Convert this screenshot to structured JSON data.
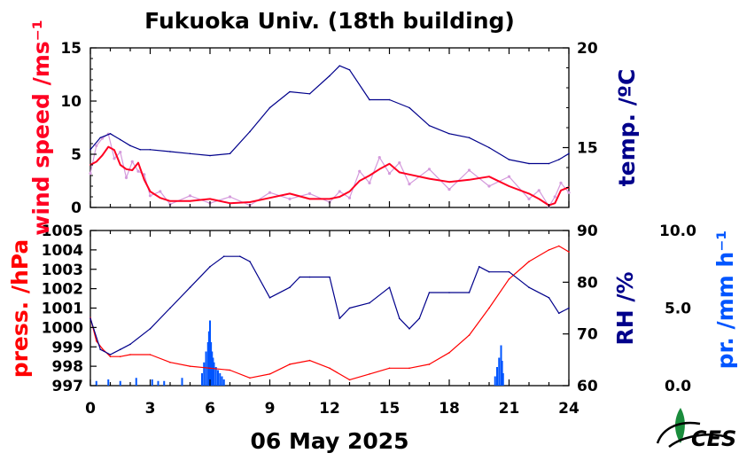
{
  "colors": {
    "wind_mean": "#ff0022",
    "wind_raw": "#d49adc",
    "temperature": "#00008b",
    "pressure": "#ff0000",
    "humidity": "#00008b",
    "precipitation": "#0055ff",
    "logo": "#1a8c3c"
  },
  "title": "Fukuoka Univ. (18th building)",
  "date": "06 May 2025",
  "logo_text": "CES",
  "chart_data": [
    {
      "type": "line",
      "panel": "top",
      "x_unit": "hour of day",
      "xlim": [
        0,
        24
      ],
      "left_axis": {
        "label": "wind speed /ms⁻¹",
        "ylim": [
          0,
          15
        ],
        "ticks": [
          "0",
          "5",
          "10",
          "15"
        ]
      },
      "right_axis": {
        "label": "temp. /ºC",
        "ylim": [
          12,
          20
        ],
        "ticks": [
          "15",
          "20"
        ]
      },
      "series": [
        {
          "key": "wind_mean",
          "axis": "left",
          "x": [
            0,
            0.3,
            0.6,
            0.9,
            1.2,
            1.5,
            1.8,
            2.1,
            2.4,
            2.7,
            3.0,
            3.5,
            4.0,
            5.0,
            6.0,
            7.0,
            8.0,
            9.0,
            10.0,
            11.0,
            12.0,
            12.5,
            13.0,
            13.5,
            14.0,
            14.5,
            15.0,
            15.5,
            16.0,
            17.0,
            18.0,
            19.0,
            20.0,
            21.0,
            22.0,
            22.5,
            23.0,
            23.3,
            23.6,
            24.0
          ],
          "values": [
            4.0,
            4.3,
            4.9,
            5.7,
            5.4,
            4.0,
            3.6,
            3.5,
            4.2,
            2.6,
            1.5,
            0.9,
            0.6,
            0.6,
            0.8,
            0.4,
            0.5,
            0.9,
            1.3,
            0.8,
            0.8,
            1.0,
            1.5,
            2.5,
            3.0,
            3.6,
            4.1,
            3.3,
            3.1,
            2.7,
            2.4,
            2.6,
            2.9,
            2.0,
            1.3,
            0.8,
            0.2,
            0.4,
            1.6,
            1.9
          ]
        },
        {
          "key": "wind_raw",
          "axis": "left",
          "x": [
            0,
            0.3,
            0.6,
            0.9,
            1.2,
            1.5,
            1.8,
            2.1,
            2.4,
            2.7,
            3.0,
            3.5,
            4.0,
            5.0,
            6.0,
            7.0,
            8.0,
            9.0,
            10.0,
            11.0,
            12.0,
            12.5,
            13.0,
            13.5,
            14.0,
            14.5,
            15.0,
            15.5,
            16.0,
            17.0,
            18.0,
            19.0,
            20.0,
            21.0,
            22.0,
            22.5,
            23.0,
            23.3,
            23.6,
            24.0
          ],
          "values": [
            3.2,
            5.8,
            6.5,
            6.9,
            4.6,
            5.2,
            2.8,
            4.3,
            3.4,
            3.1,
            1.1,
            1.5,
            0.3,
            1.1,
            0.4,
            1.0,
            0.2,
            1.4,
            0.8,
            1.3,
            0.5,
            1.5,
            0.9,
            3.4,
            2.3,
            4.7,
            3.2,
            4.2,
            2.2,
            3.6,
            1.7,
            3.5,
            2.0,
            2.9,
            0.8,
            1.6,
            0.1,
            1.0,
            2.3,
            1.4
          ]
        },
        {
          "key": "temperature",
          "axis": "right",
          "x": [
            0,
            0.5,
            1.0,
            1.5,
            2.0,
            2.5,
            3.0,
            4.0,
            5.0,
            6.0,
            7.0,
            8.0,
            9.0,
            10.0,
            11.0,
            12.0,
            12.5,
            13.0,
            14.0,
            15.0,
            16.0,
            17.0,
            18.0,
            19.0,
            20.0,
            21.0,
            22.0,
            23.0,
            23.5,
            24.0
          ],
          "values": [
            14.9,
            15.5,
            15.7,
            15.4,
            15.1,
            14.9,
            14.9,
            14.8,
            14.7,
            14.6,
            14.7,
            15.8,
            17.0,
            17.8,
            17.7,
            18.6,
            19.1,
            18.9,
            17.4,
            17.4,
            17.0,
            16.1,
            15.7,
            15.5,
            15.0,
            14.4,
            14.2,
            14.2,
            14.4,
            14.7
          ]
        }
      ]
    },
    {
      "type": "line",
      "panel": "bottom",
      "x_unit": "hour of day",
      "xlim": [
        0,
        24
      ],
      "xticks": [
        "0",
        "3",
        "6",
        "9",
        "12",
        "15",
        "18",
        "21",
        "24"
      ],
      "left_axis": {
        "label": "press. /hPa",
        "ylim": [
          997,
          1005
        ],
        "ticks": [
          "997",
          "998",
          "999",
          "1000",
          "1001",
          "1002",
          "1003",
          "1004",
          "1005"
        ]
      },
      "right_axis": {
        "label": "RH /%",
        "ylim": [
          60,
          90
        ],
        "ticks": [
          "60",
          "70",
          "80",
          "90"
        ]
      },
      "extra_axis": {
        "label": "pr. /mm h⁻¹",
        "ylim": [
          0,
          10
        ],
        "ticks": [
          "0.0",
          "5.0",
          "10.0"
        ]
      },
      "series": [
        {
          "key": "pressure",
          "axis": "left",
          "x": [
            0,
            0.3,
            0.6,
            1.0,
            1.5,
            2.0,
            3.0,
            4.0,
            5.0,
            6.0,
            7.0,
            8.0,
            9.0,
            10.0,
            11.0,
            12.0,
            13.0,
            14.0,
            15.0,
            16.0,
            17.0,
            18.0,
            19.0,
            20.0,
            21.0,
            22.0,
            23.0,
            23.5,
            24.0
          ],
          "values": [
            1000.5,
            999.3,
            998.9,
            998.5,
            998.5,
            998.6,
            998.6,
            998.2,
            998.0,
            997.9,
            997.8,
            997.4,
            997.6,
            998.1,
            998.3,
            997.9,
            997.3,
            997.6,
            997.9,
            997.9,
            998.1,
            998.7,
            999.6,
            1001.0,
            1002.5,
            1003.4,
            1004.0,
            1004.2,
            1003.9
          ]
        },
        {
          "key": "humidity",
          "axis": "right",
          "x": [
            0,
            0.5,
            1.0,
            1.5,
            2.0,
            3.0,
            4.0,
            5.0,
            6.0,
            6.7,
            7.5,
            8.0,
            9.0,
            10.0,
            10.5,
            11.0,
            12.0,
            12.5,
            13.0,
            14.0,
            15.0,
            15.5,
            16.0,
            16.5,
            17.0,
            18.0,
            19.0,
            19.5,
            20.0,
            21.0,
            22.0,
            23.0,
            23.5,
            24.0
          ],
          "values": [
            73,
            67,
            66,
            67,
            68,
            71,
            75,
            79,
            83,
            85,
            85,
            84,
            77,
            79,
            81,
            81,
            81,
            73,
            75,
            76,
            79,
            73,
            71,
            73,
            78,
            78,
            78,
            83,
            82,
            82,
            79,
            77,
            74,
            75
          ]
        },
        {
          "key": "precipitation",
          "axis": "extra",
          "type": "bar",
          "x": [
            0.3,
            0.9,
            1.5,
            2.3,
            3.1,
            3.4,
            3.7,
            4.6,
            5.6,
            5.7,
            5.8,
            5.9,
            5.95,
            6.0,
            6.05,
            6.1,
            6.15,
            6.2,
            6.3,
            6.4,
            6.5,
            6.6,
            6.7,
            20.3,
            20.4,
            20.5,
            20.6,
            20.65,
            20.7
          ],
          "values": [
            0.3,
            0.4,
            0.3,
            0.5,
            0.4,
            0.3,
            0.3,
            0.5,
            0.8,
            1.5,
            2.2,
            2.8,
            3.5,
            4.2,
            2.8,
            2.2,
            1.8,
            1.5,
            1.2,
            1.0,
            0.8,
            0.6,
            0.4,
            0.6,
            1.2,
            1.8,
            2.6,
            1.6,
            0.8
          ]
        }
      ]
    }
  ]
}
